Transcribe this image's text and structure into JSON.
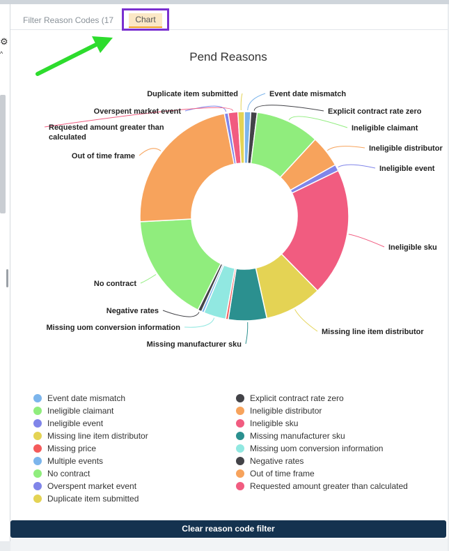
{
  "tabs": {
    "filter_label": "Filter Reason Codes (17",
    "chart_label": "Chart"
  },
  "icons": {
    "gear": "gear-icon",
    "arrow": "green-arrow-annotation",
    "caret": "caret-up-icon"
  },
  "colors": {
    "highlight_box": "#7a2fd0",
    "arrow": "#2ddc2d",
    "button_bg": "#14324f"
  },
  "clear_button_label": "Clear reason code filter",
  "chart_data": {
    "type": "pie",
    "donut": true,
    "title": "Pend Reasons",
    "legend_position": "bottom",
    "slices": [
      {
        "label": "Event date mismatch",
        "value": 1,
        "color": "#7cb5ec"
      },
      {
        "label": "Explicit contract rate zero",
        "value": 1,
        "color": "#434348"
      },
      {
        "label": "Ineligible claimant",
        "value": 10,
        "color": "#90ed7d"
      },
      {
        "label": "Ineligible distributor",
        "value": 5,
        "color": "#f7a35c"
      },
      {
        "label": "Ineligible event",
        "value": 1,
        "color": "#8085e9"
      },
      {
        "label": "Ineligible sku",
        "value": 20,
        "color": "#f15c80"
      },
      {
        "label": "Missing line item distributor",
        "value": 9,
        "color": "#e4d354"
      },
      {
        "label": "Missing manufacturer sku",
        "value": 6,
        "color": "#2b908f"
      },
      {
        "label": "Missing price",
        "value": 0.4,
        "color": "#f45b5b"
      },
      {
        "label": "Missing uom conversion information",
        "value": 3.5,
        "color": "#91e8e1"
      },
      {
        "label": "Multiple events",
        "value": 0.4,
        "color": "#7cb5ec"
      },
      {
        "label": "Negative rates",
        "value": 0.6,
        "color": "#434348"
      },
      {
        "label": "No contract",
        "value": 17,
        "color": "#90ed7d"
      },
      {
        "label": "Out of time frame",
        "value": 23,
        "color": "#f7a35c"
      },
      {
        "label": "Overspent market event",
        "value": 0.6,
        "color": "#8085e9"
      },
      {
        "label": "Requested amount greater than calculated",
        "value": 1.5,
        "color": "#f15c80"
      },
      {
        "label": "Duplicate item submitted",
        "value": 1,
        "color": "#e4d354"
      }
    ]
  }
}
